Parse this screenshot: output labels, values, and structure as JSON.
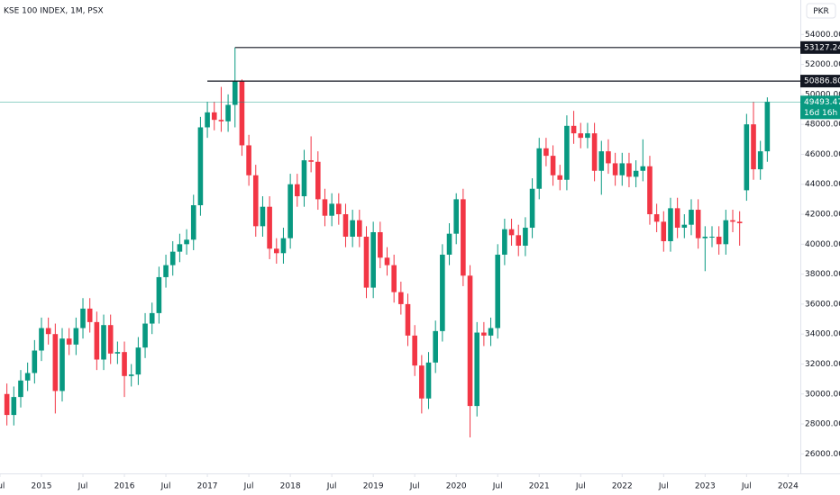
{
  "chart_data": {
    "type": "candlestick",
    "title": "KSE 100 INDEX, 1M, PSX",
    "currency": "PKR",
    "up_color": "#089981",
    "down_color": "#f23645",
    "categories": [
      "2014-08",
      "2014-09",
      "2014-10",
      "2014-11",
      "2014-12",
      "2015-01",
      "2015-02",
      "2015-03",
      "2015-04",
      "2015-05",
      "2015-06",
      "2015-07",
      "2015-08",
      "2015-09",
      "2015-10",
      "2015-11",
      "2015-12",
      "2016-01",
      "2016-02",
      "2016-03",
      "2016-04",
      "2016-05",
      "2016-06",
      "2016-07",
      "2016-08",
      "2016-09",
      "2016-10",
      "2016-11",
      "2016-12",
      "2017-01",
      "2017-02",
      "2017-03",
      "2017-04",
      "2017-05",
      "2017-06",
      "2017-07",
      "2017-08",
      "2017-09",
      "2017-10",
      "2017-11",
      "2017-12",
      "2018-01",
      "2018-02",
      "2018-03",
      "2018-04",
      "2018-05",
      "2018-06",
      "2018-07",
      "2018-08",
      "2018-09",
      "2018-10",
      "2018-11",
      "2018-12",
      "2019-01",
      "2019-02",
      "2019-03",
      "2019-04",
      "2019-05",
      "2019-06",
      "2019-07",
      "2019-08",
      "2019-09",
      "2019-10",
      "2019-11",
      "2019-12",
      "2020-01",
      "2020-02",
      "2020-03",
      "2020-04",
      "2020-05",
      "2020-06",
      "2020-07",
      "2020-08",
      "2020-09",
      "2020-10",
      "2020-11",
      "2020-12",
      "2021-01",
      "2021-02",
      "2021-03",
      "2021-04",
      "2021-05",
      "2021-06",
      "2021-07",
      "2021-08",
      "2021-09",
      "2021-10",
      "2021-11",
      "2021-12",
      "2022-01",
      "2022-02",
      "2022-03",
      "2022-04",
      "2022-05",
      "2022-06",
      "2022-07",
      "2022-08",
      "2022-09",
      "2022-10",
      "2022-11",
      "2022-12",
      "2023-01",
      "2023-02",
      "2023-03",
      "2023-04",
      "2023-05",
      "2023-06",
      "2023-07",
      "2023-08",
      "2023-09",
      "2023-10"
    ],
    "open": [
      30000,
      28600,
      29800,
      30900,
      31400,
      32900,
      34400,
      34000,
      30200,
      33700,
      33300,
      34400,
      35700,
      34800,
      32300,
      34600,
      32700,
      32800,
      31200,
      31300,
      33100,
      34700,
      35400,
      37800,
      38600,
      39500,
      40000,
      40300,
      42600,
      47800,
      48800,
      48300,
      48200,
      49300,
      50887,
      46600,
      44600,
      41200,
      42500,
      39700,
      39400,
      40400,
      44000,
      43200,
      45600,
      45500,
      43000,
      41900,
      42700,
      42000,
      40500,
      41600,
      40500,
      37100,
      40800,
      39100,
      38600,
      36800,
      36000,
      33900,
      31900,
      29700,
      32100,
      34200,
      39300,
      40700,
      43000,
      37900,
      29200,
      34100,
      33900,
      34400,
      39300,
      41000,
      40600,
      39900,
      41100,
      43700,
      46400,
      45900,
      44600,
      44300,
      47900,
      47400,
      47100,
      47400,
      44900,
      46200,
      45400,
      44600,
      45400,
      44500,
      44900,
      45200,
      42000,
      41500,
      40200,
      42400,
      41100,
      41300,
      42300,
      40400,
      40500,
      40500,
      40000,
      41600,
      41500,
      43600,
      48000,
      45000,
      46200
    ],
    "high": [
      30700,
      30500,
      31600,
      32100,
      33600,
      35100,
      35100,
      34700,
      34400,
      34400,
      35100,
      36400,
      36400,
      35500,
      35300,
      35300,
      33500,
      33500,
      32000,
      33800,
      35400,
      36100,
      38500,
      39300,
      40200,
      40700,
      41000,
      43300,
      48500,
      49500,
      49500,
      50500,
      50000,
      53127.24,
      51000,
      47300,
      45300,
      43200,
      43200,
      40400,
      41100,
      44700,
      44700,
      46300,
      47200,
      46200,
      43700,
      43400,
      43400,
      42700,
      42300,
      42300,
      41200,
      41500,
      41500,
      39800,
      39300,
      37500,
      36700,
      34600,
      32600,
      32800,
      34900,
      40000,
      41400,
      43400,
      43700,
      38600,
      34800,
      34800,
      35100,
      40000,
      41700,
      41700,
      41300,
      41800,
      44400,
      47100,
      47100,
      46600,
      45300,
      48600,
      48900,
      48100,
      48100,
      48100,
      46900,
      47000,
      46100,
      46100,
      46100,
      45600,
      47000,
      45900,
      42700,
      42200,
      43100,
      43100,
      42000,
      43000,
      43000,
      41200,
      41200,
      41200,
      42300,
      42300,
      42200,
      48700,
      49500,
      46900,
      49800
    ],
    "low": [
      27900,
      27900,
      29100,
      30200,
      30700,
      32200,
      33300,
      28700,
      29500,
      32600,
      32600,
      33700,
      34100,
      31600,
      31600,
      32000,
      32000,
      29800,
      30500,
      30600,
      32400,
      34000,
      34700,
      37100,
      37900,
      38800,
      39300,
      39600,
      41900,
      47100,
      47600,
      47500,
      47500,
      47800,
      45900,
      43900,
      40500,
      40500,
      39000,
      38700,
      38700,
      39700,
      42500,
      42500,
      44800,
      42300,
      41200,
      41200,
      41300,
      39800,
      39800,
      39800,
      36400,
      36400,
      38400,
      37900,
      36100,
      35300,
      33200,
      31200,
      28700,
      29000,
      31400,
      33500,
      38600,
      40000,
      37200,
      27100,
      28500,
      33200,
      33200,
      33700,
      38600,
      39900,
      39200,
      39200,
      40400,
      43000,
      45200,
      43900,
      43600,
      43600,
      46700,
      46400,
      46400,
      44200,
      43300,
      44700,
      43900,
      43900,
      43800,
      43800,
      44200,
      41300,
      40800,
      39500,
      39500,
      40400,
      40400,
      40600,
      39700,
      38200,
      39800,
      39300,
      39300,
      40800,
      39900,
      42900,
      44300,
      44300,
      45500
    ],
    "close": [
      28600,
      29800,
      30900,
      31400,
      32900,
      34400,
      34000,
      30200,
      33700,
      33300,
      34400,
      35700,
      34800,
      32300,
      34600,
      32700,
      32800,
      31200,
      31300,
      33100,
      34700,
      35400,
      37800,
      38600,
      39500,
      40000,
      40300,
      42600,
      47800,
      48800,
      48300,
      48200,
      49300,
      50887,
      46600,
      44600,
      41200,
      42500,
      39700,
      39400,
      40400,
      44000,
      43200,
      45600,
      45500,
      43000,
      41900,
      42700,
      42000,
      40500,
      41600,
      40500,
      37100,
      40800,
      39100,
      38600,
      36800,
      36000,
      33900,
      31900,
      29700,
      32100,
      34200,
      39300,
      40700,
      43000,
      37900,
      29200,
      34100,
      33900,
      34400,
      39300,
      41000,
      40600,
      39900,
      41100,
      43700,
      46400,
      45900,
      44600,
      44300,
      47900,
      47400,
      47100,
      47400,
      44900,
      46200,
      45400,
      44600,
      45400,
      44500,
      44900,
      45200,
      42000,
      41500,
      40200,
      42400,
      41100,
      41300,
      42300,
      40400,
      40500,
      40500,
      40000,
      41600,
      41500,
      41400,
      48000,
      45000,
      46200,
      49493.47
    ],
    "last_price": {
      "value": 49493.47,
      "label": "49493.47",
      "countdown": "16d 16h",
      "color": "#089981"
    },
    "levels": [
      {
        "value": 53127.24,
        "label": "53127.24",
        "start": "2017-05"
      },
      {
        "value": 50886.8,
        "label": "50886.80",
        "start": "2017-01"
      }
    ],
    "ylim": [
      24700,
      56300
    ],
    "yticks": [
      {
        "value": 26000,
        "label": "26000.00"
      },
      {
        "value": 28000,
        "label": "28000.00"
      },
      {
        "value": 30000,
        "label": "30000.00"
      },
      {
        "value": 32000,
        "label": "32000.00"
      },
      {
        "value": 34000,
        "label": "34000.00"
      },
      {
        "value": 36000,
        "label": "36000.00"
      },
      {
        "value": 38000,
        "label": "38000.00"
      },
      {
        "value": 40000,
        "label": "40000.00"
      },
      {
        "value": 42000,
        "label": "42000.00"
      },
      {
        "value": 44000,
        "label": "44000.00"
      },
      {
        "value": 46000,
        "label": "46000.00"
      },
      {
        "value": 48000,
        "label": "48000.00"
      },
      {
        "value": 50000,
        "label": "50000.00"
      },
      {
        "value": 52000,
        "label": "52000.00"
      },
      {
        "value": 54000,
        "label": "54000.00"
      }
    ],
    "xticks": [
      {
        "value": "2014-07",
        "label": "Jul"
      },
      {
        "value": "2015-01",
        "label": "2015"
      },
      {
        "value": "2015-07",
        "label": "Jul"
      },
      {
        "value": "2016-01",
        "label": "2016"
      },
      {
        "value": "2016-07",
        "label": "Jul"
      },
      {
        "value": "2017-01",
        "label": "2017"
      },
      {
        "value": "2017-07",
        "label": "Jul"
      },
      {
        "value": "2018-01",
        "label": "2018"
      },
      {
        "value": "2018-07",
        "label": "Jul"
      },
      {
        "value": "2019-01",
        "label": "2019"
      },
      {
        "value": "2019-07",
        "label": "Jul"
      },
      {
        "value": "2020-01",
        "label": "2020"
      },
      {
        "value": "2020-07",
        "label": "Jul"
      },
      {
        "value": "2021-01",
        "label": "2021"
      },
      {
        "value": "2021-07",
        "label": "Jul"
      },
      {
        "value": "2022-01",
        "label": "2022"
      },
      {
        "value": "2022-07",
        "label": "Jul"
      },
      {
        "value": "2023-01",
        "label": "2023"
      },
      {
        "value": "2023-07",
        "label": "Jul"
      },
      {
        "value": "2024-01",
        "label": "2024"
      }
    ]
  }
}
